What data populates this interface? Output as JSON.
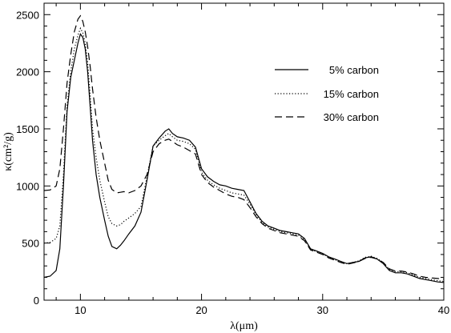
{
  "chart_data": {
    "type": "line",
    "xlabel": "λ(μm)",
    "ylabel": "κ(cm²/g)",
    "xlim": [
      7,
      40
    ],
    "ylim": [
      0,
      2600
    ],
    "x_ticks": [
      10,
      20,
      30,
      40
    ],
    "y_ticks": [
      0,
      500,
      1000,
      1500,
      2000,
      2500
    ],
    "grid": false,
    "legend_position": "top-right",
    "series": [
      {
        "name": "5% carbon",
        "dash": "solid",
        "x": [
          7,
          7.5,
          8,
          8.3,
          8.6,
          8.9,
          9.2,
          9.5,
          9.8,
          10,
          10.2,
          10.4,
          10.6,
          10.8,
          11,
          11.3,
          11.6,
          12,
          12.3,
          12.6,
          13,
          13.3,
          13.6,
          14,
          14.5,
          15,
          15.5,
          16,
          16.5,
          17,
          17.3,
          17.6,
          18,
          18.5,
          19,
          19.5,
          20,
          20.5,
          21,
          21.5,
          22,
          22.5,
          23,
          23.5,
          24,
          24.5,
          25,
          25.5,
          26,
          26.5,
          27,
          27.5,
          28,
          28.5,
          29,
          29.5,
          30,
          30.5,
          31,
          31.5,
          32,
          32.5,
          33,
          33.5,
          34,
          34.5,
          35,
          35.5,
          36,
          36.5,
          37,
          37.5,
          38,
          38.5,
          39,
          39.5,
          40
        ],
        "y": [
          200,
          210,
          260,
          450,
          1000,
          1650,
          1950,
          2100,
          2250,
          2330,
          2300,
          2200,
          2000,
          1700,
          1400,
          1100,
          900,
          700,
          560,
          470,
          450,
          480,
          520,
          580,
          650,
          770,
          1050,
          1350,
          1420,
          1480,
          1500,
          1460,
          1430,
          1420,
          1400,
          1340,
          1150,
          1080,
          1040,
          1010,
          1000,
          980,
          970,
          960,
          860,
          760,
          690,
          650,
          630,
          610,
          600,
          590,
          580,
          540,
          450,
          430,
          410,
          380,
          360,
          340,
          320,
          330,
          340,
          370,
          380,
          360,
          320,
          260,
          240,
          240,
          230,
          210,
          190,
          180,
          170,
          160,
          155
        ]
      },
      {
        "name": "15% carbon",
        "dash": "dotted",
        "x": [
          7,
          7.5,
          8,
          8.3,
          8.6,
          8.9,
          9.2,
          9.5,
          9.8,
          10,
          10.2,
          10.4,
          10.6,
          10.8,
          11,
          11.3,
          11.6,
          12,
          12.3,
          12.6,
          13,
          13.3,
          13.6,
          14,
          14.5,
          15,
          15.5,
          16,
          16.5,
          17,
          17.3,
          17.6,
          18,
          18.5,
          19,
          19.5,
          20,
          20.5,
          21,
          21.5,
          22,
          22.5,
          23,
          23.5,
          24,
          24.5,
          25,
          25.5,
          26,
          26.5,
          27,
          27.5,
          28,
          28.5,
          29,
          29.5,
          30,
          30.5,
          31,
          31.5,
          32,
          32.5,
          33,
          33.5,
          34,
          34.5,
          35,
          35.5,
          36,
          36.5,
          37,
          37.5,
          38,
          38.5,
          39,
          39.5,
          40
        ],
        "y": [
          500,
          505,
          540,
          650,
          1100,
          1700,
          2000,
          2200,
          2320,
          2380,
          2340,
          2250,
          2080,
          1800,
          1500,
          1250,
          1050,
          860,
          730,
          670,
          650,
          660,
          690,
          720,
          760,
          820,
          1080,
          1350,
          1400,
          1440,
          1460,
          1430,
          1400,
          1390,
          1370,
          1320,
          1120,
          1050,
          1010,
          980,
          960,
          940,
          930,
          920,
          840,
          750,
          680,
          640,
          620,
          600,
          590,
          580,
          570,
          530,
          445,
          425,
          405,
          375,
          355,
          335,
          320,
          330,
          345,
          375,
          385,
          365,
          330,
          270,
          250,
          250,
          240,
          220,
          200,
          190,
          180,
          170,
          165
        ]
      },
      {
        "name": "30% carbon",
        "dash": "dashed",
        "x": [
          7,
          7.5,
          8,
          8.3,
          8.6,
          8.9,
          9.2,
          9.5,
          9.8,
          10,
          10.2,
          10.4,
          10.6,
          10.8,
          11,
          11.3,
          11.6,
          12,
          12.3,
          12.6,
          13,
          13.3,
          13.6,
          14,
          14.5,
          15,
          15.5,
          16,
          16.5,
          17,
          17.3,
          17.6,
          18,
          18.5,
          19,
          19.5,
          20,
          20.5,
          21,
          21.5,
          22,
          22.5,
          23,
          23.5,
          24,
          24.5,
          25,
          25.5,
          26,
          26.5,
          27,
          27.5,
          28,
          28.5,
          29,
          29.5,
          30,
          30.5,
          31,
          31.5,
          32,
          32.5,
          33,
          33.5,
          34,
          34.5,
          35,
          35.5,
          36,
          36.5,
          37,
          37.5,
          38,
          38.5,
          39,
          39.5,
          40
        ],
        "y": [
          960,
          965,
          1000,
          1150,
          1500,
          1900,
          2150,
          2350,
          2460,
          2490,
          2440,
          2350,
          2220,
          2050,
          1850,
          1600,
          1400,
          1200,
          1050,
          970,
          940,
          945,
          950,
          940,
          960,
          1000,
          1100,
          1300,
          1370,
          1400,
          1410,
          1390,
          1360,
          1340,
          1310,
          1280,
          1100,
          1030,
          990,
          960,
          930,
          910,
          900,
          880,
          810,
          730,
          670,
          630,
          610,
          590,
          580,
          570,
          560,
          520,
          440,
          420,
          400,
          370,
          350,
          330,
          315,
          325,
          340,
          365,
          375,
          360,
          330,
          275,
          255,
          255,
          245,
          230,
          210,
          200,
          195,
          190,
          185
        ]
      }
    ]
  }
}
